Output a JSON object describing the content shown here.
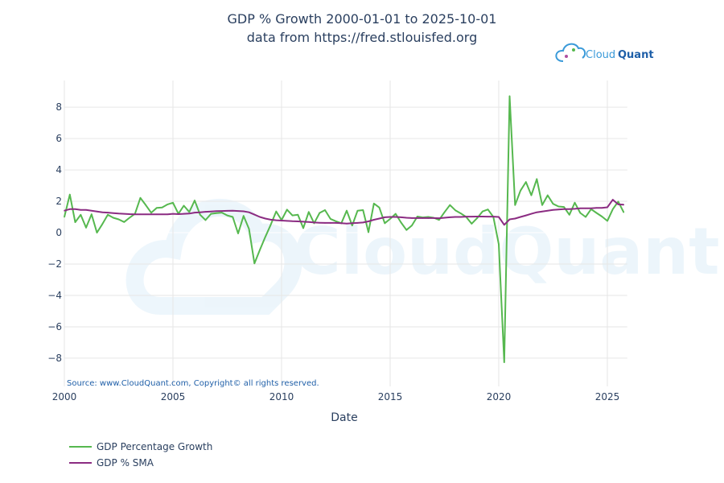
{
  "logo": {
    "text_a": "Cloud",
    "text_b": "Quant",
    "color_a": "#3a9ad9",
    "color_b": "#1e5fa8"
  },
  "watermark": "CloudQuant",
  "chart_data": {
    "type": "line",
    "title": "GDP % Growth 2000-01-01 to 2025-10-01",
    "subtitle": "data from https://fred.stlouisfed.org",
    "xlabel": "Date",
    "ylabel": "",
    "source": "Source: www.CloudQuant.com, Copyright© all rights reserved.",
    "xlim": [
      "2000-01-01",
      "2025-12-01"
    ],
    "ylim": [
      -9.8,
      9.7
    ],
    "x_ticks": [
      2000,
      2005,
      2010,
      2015,
      2020,
      2025
    ],
    "y_ticks": [
      -8,
      -6,
      -4,
      -2,
      0,
      2,
      4,
      6,
      8
    ],
    "y_tick_labels": [
      "−8",
      "−6",
      "−4",
      "−2",
      "0",
      "2",
      "4",
      "6",
      "8"
    ],
    "grid": true,
    "legend_position": "bottom-left",
    "x": [
      "2000-01-01",
      "2000-04-01",
      "2000-07-01",
      "2000-10-01",
      "2001-01-01",
      "2001-04-01",
      "2001-07-01",
      "2001-10-01",
      "2002-01-01",
      "2002-04-01",
      "2002-07-01",
      "2002-10-01",
      "2003-01-01",
      "2003-04-01",
      "2003-07-01",
      "2003-10-01",
      "2004-01-01",
      "2004-04-01",
      "2004-07-01",
      "2004-10-01",
      "2005-01-01",
      "2005-04-01",
      "2005-07-01",
      "2005-10-01",
      "2006-01-01",
      "2006-04-01",
      "2006-07-01",
      "2006-10-01",
      "2007-01-01",
      "2007-04-01",
      "2007-07-01",
      "2007-10-01",
      "2008-01-01",
      "2008-04-01",
      "2008-07-01",
      "2008-10-01",
      "2009-01-01",
      "2009-04-01",
      "2009-07-01",
      "2009-10-01",
      "2010-01-01",
      "2010-04-01",
      "2010-07-01",
      "2010-10-01",
      "2011-01-01",
      "2011-04-01",
      "2011-07-01",
      "2011-10-01",
      "2012-01-01",
      "2012-04-01",
      "2012-07-01",
      "2012-10-01",
      "2013-01-01",
      "2013-04-01",
      "2013-07-01",
      "2013-10-01",
      "2014-01-01",
      "2014-04-01",
      "2014-07-01",
      "2014-10-01",
      "2015-01-01",
      "2015-04-01",
      "2015-07-01",
      "2015-10-01",
      "2016-01-01",
      "2016-04-01",
      "2016-07-01",
      "2016-10-01",
      "2017-01-01",
      "2017-04-01",
      "2017-07-01",
      "2017-10-01",
      "2018-01-01",
      "2018-04-01",
      "2018-07-01",
      "2018-10-01",
      "2019-01-01",
      "2019-04-01",
      "2019-07-01",
      "2019-10-01",
      "2020-01-01",
      "2020-04-01",
      "2020-07-01",
      "2020-10-01",
      "2021-01-01",
      "2021-04-01",
      "2021-07-01",
      "2021-10-01",
      "2022-01-01",
      "2022-04-01",
      "2022-07-01",
      "2022-10-01",
      "2023-01-01",
      "2023-04-01",
      "2023-07-01",
      "2023-10-01",
      "2024-01-01",
      "2024-04-01",
      "2024-07-01",
      "2024-10-01",
      "2025-01-01",
      "2025-04-01",
      "2025-07-01",
      "2025-10-01"
    ],
    "series": [
      {
        "name": "GDP Percentage Growth",
        "color": "#56b84f",
        "values": [
          1.0,
          2.43,
          0.67,
          1.14,
          0.32,
          1.17,
          0.0,
          0.55,
          1.14,
          0.95,
          0.85,
          0.68,
          0.95,
          1.2,
          2.22,
          1.75,
          1.27,
          1.58,
          1.6,
          1.8,
          1.91,
          1.2,
          1.72,
          1.32,
          2.05,
          1.14,
          0.8,
          1.2,
          1.25,
          1.28,
          1.1,
          1.0,
          -0.05,
          1.07,
          0.25,
          -1.96,
          -1.1,
          -0.27,
          0.5,
          1.35,
          0.8,
          1.47,
          1.1,
          1.14,
          0.29,
          1.32,
          0.6,
          1.26,
          1.44,
          0.88,
          0.73,
          0.6,
          1.4,
          0.46,
          1.4,
          1.44,
          0.03,
          1.86,
          1.6,
          0.6,
          0.88,
          1.2,
          0.65,
          0.17,
          0.46,
          1.03,
          0.97,
          1.0,
          0.95,
          0.81,
          1.3,
          1.76,
          1.43,
          1.23,
          1.0,
          0.57,
          0.92,
          1.35,
          1.48,
          1.0,
          -0.73,
          -8.26,
          8.7,
          1.76,
          2.68,
          3.23,
          2.38,
          3.42,
          1.76,
          2.38,
          1.84,
          1.67,
          1.64,
          1.14,
          1.91,
          1.26,
          1.0,
          1.5,
          1.26,
          1.03,
          0.75,
          1.5,
          1.98,
          1.3
        ]
      },
      {
        "name": "GDP % SMA",
        "color": "#8b2c82",
        "values": [
          1.4,
          1.5,
          1.5,
          1.45,
          1.45,
          1.4,
          1.35,
          1.3,
          1.28,
          1.25,
          1.22,
          1.2,
          1.18,
          1.17,
          1.17,
          1.17,
          1.17,
          1.17,
          1.17,
          1.17,
          1.2,
          1.18,
          1.2,
          1.22,
          1.28,
          1.3,
          1.33,
          1.35,
          1.37,
          1.38,
          1.39,
          1.4,
          1.38,
          1.36,
          1.3,
          1.15,
          1.0,
          0.9,
          0.83,
          0.79,
          0.77,
          0.75,
          0.73,
          0.72,
          0.7,
          0.68,
          0.65,
          0.63,
          0.62,
          0.62,
          0.62,
          0.6,
          0.58,
          0.6,
          0.62,
          0.65,
          0.72,
          0.82,
          0.9,
          0.98,
          1.0,
          1.0,
          0.98,
          0.95,
          0.93,
          0.93,
          0.93,
          0.93,
          0.93,
          0.92,
          0.95,
          0.98,
          1.0,
          1.0,
          1.02,
          1.02,
          1.03,
          1.03,
          1.02,
          1.02,
          1.0,
          0.5,
          0.85,
          0.9,
          1.0,
          1.1,
          1.2,
          1.3,
          1.35,
          1.4,
          1.45,
          1.48,
          1.5,
          1.5,
          1.52,
          1.55,
          1.55,
          1.55,
          1.58,
          1.58,
          1.62,
          2.1,
          1.8,
          1.78
        ]
      }
    ]
  }
}
